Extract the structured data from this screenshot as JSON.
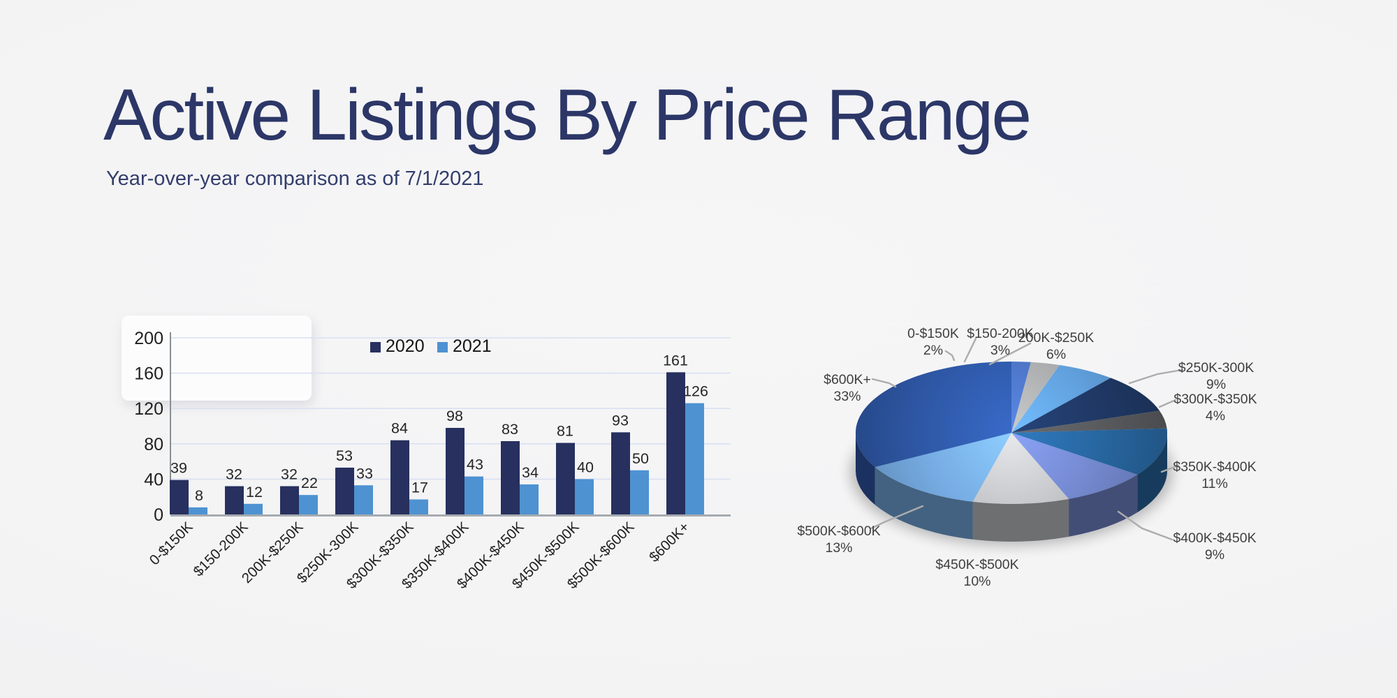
{
  "page": {
    "background_color": "#F3F3F4"
  },
  "header": {
    "title": "Active Listings By Price Range",
    "subtitle": "Year-over-year comparison as of 7/1/2021",
    "title_color": "#2C3768",
    "subtitle_color": "#333E6D"
  },
  "chart_data": [
    {
      "type": "bar",
      "categories": [
        "0-$150K",
        "$150-200K",
        "200K-$250K",
        "$250K-300K",
        "$300K-$350K",
        "$350K-$400K",
        "$400K-$450K",
        "$450K-$500K",
        "$500K-$600K",
        "$600K+"
      ],
      "series": [
        {
          "name": "2020",
          "color": "#27305E",
          "values": [
            39,
            32,
            32,
            53,
            84,
            98,
            83,
            81,
            93,
            161
          ]
        },
        {
          "name": "2021",
          "color": "#4E92D2",
          "values": [
            8,
            12,
            22,
            33,
            17,
            43,
            34,
            40,
            50,
            126
          ]
        }
      ],
      "xlabel": "",
      "ylabel": "",
      "ylim": [
        0,
        200
      ],
      "yticks": [
        0,
        40,
        80,
        120,
        160,
        200
      ],
      "grid": true,
      "grid_color": "#D9E0F1",
      "legend_position": "top-center",
      "value_labels": true,
      "value_label_color": "#262626",
      "tick_label_color": "#1F1F1F"
    },
    {
      "type": "pie",
      "style": "3d",
      "labels": [
        "0-$150K",
        "$150-200K",
        "200K-$250K",
        "$250K-300K",
        "$300K-$350K",
        "$350K-$400K",
        "$400K-$450K",
        "$450K-$500K",
        "$500K-$600K",
        "$600K+"
      ],
      "values": [
        2,
        3,
        6,
        9,
        4,
        11,
        9,
        10,
        13,
        33
      ],
      "unit": "%",
      "colors": [
        "#4A70BD",
        "#A5A6A8",
        "#5E9CD8",
        "#1F3864",
        "#57595D",
        "#27659E",
        "#7286CB",
        "#BDBFC2",
        "#74A9DF",
        "#2E57A5"
      ],
      "label_color": "#3F3F3F",
      "leader_line_color": "#ACACAC",
      "legend_position": "none"
    }
  ]
}
